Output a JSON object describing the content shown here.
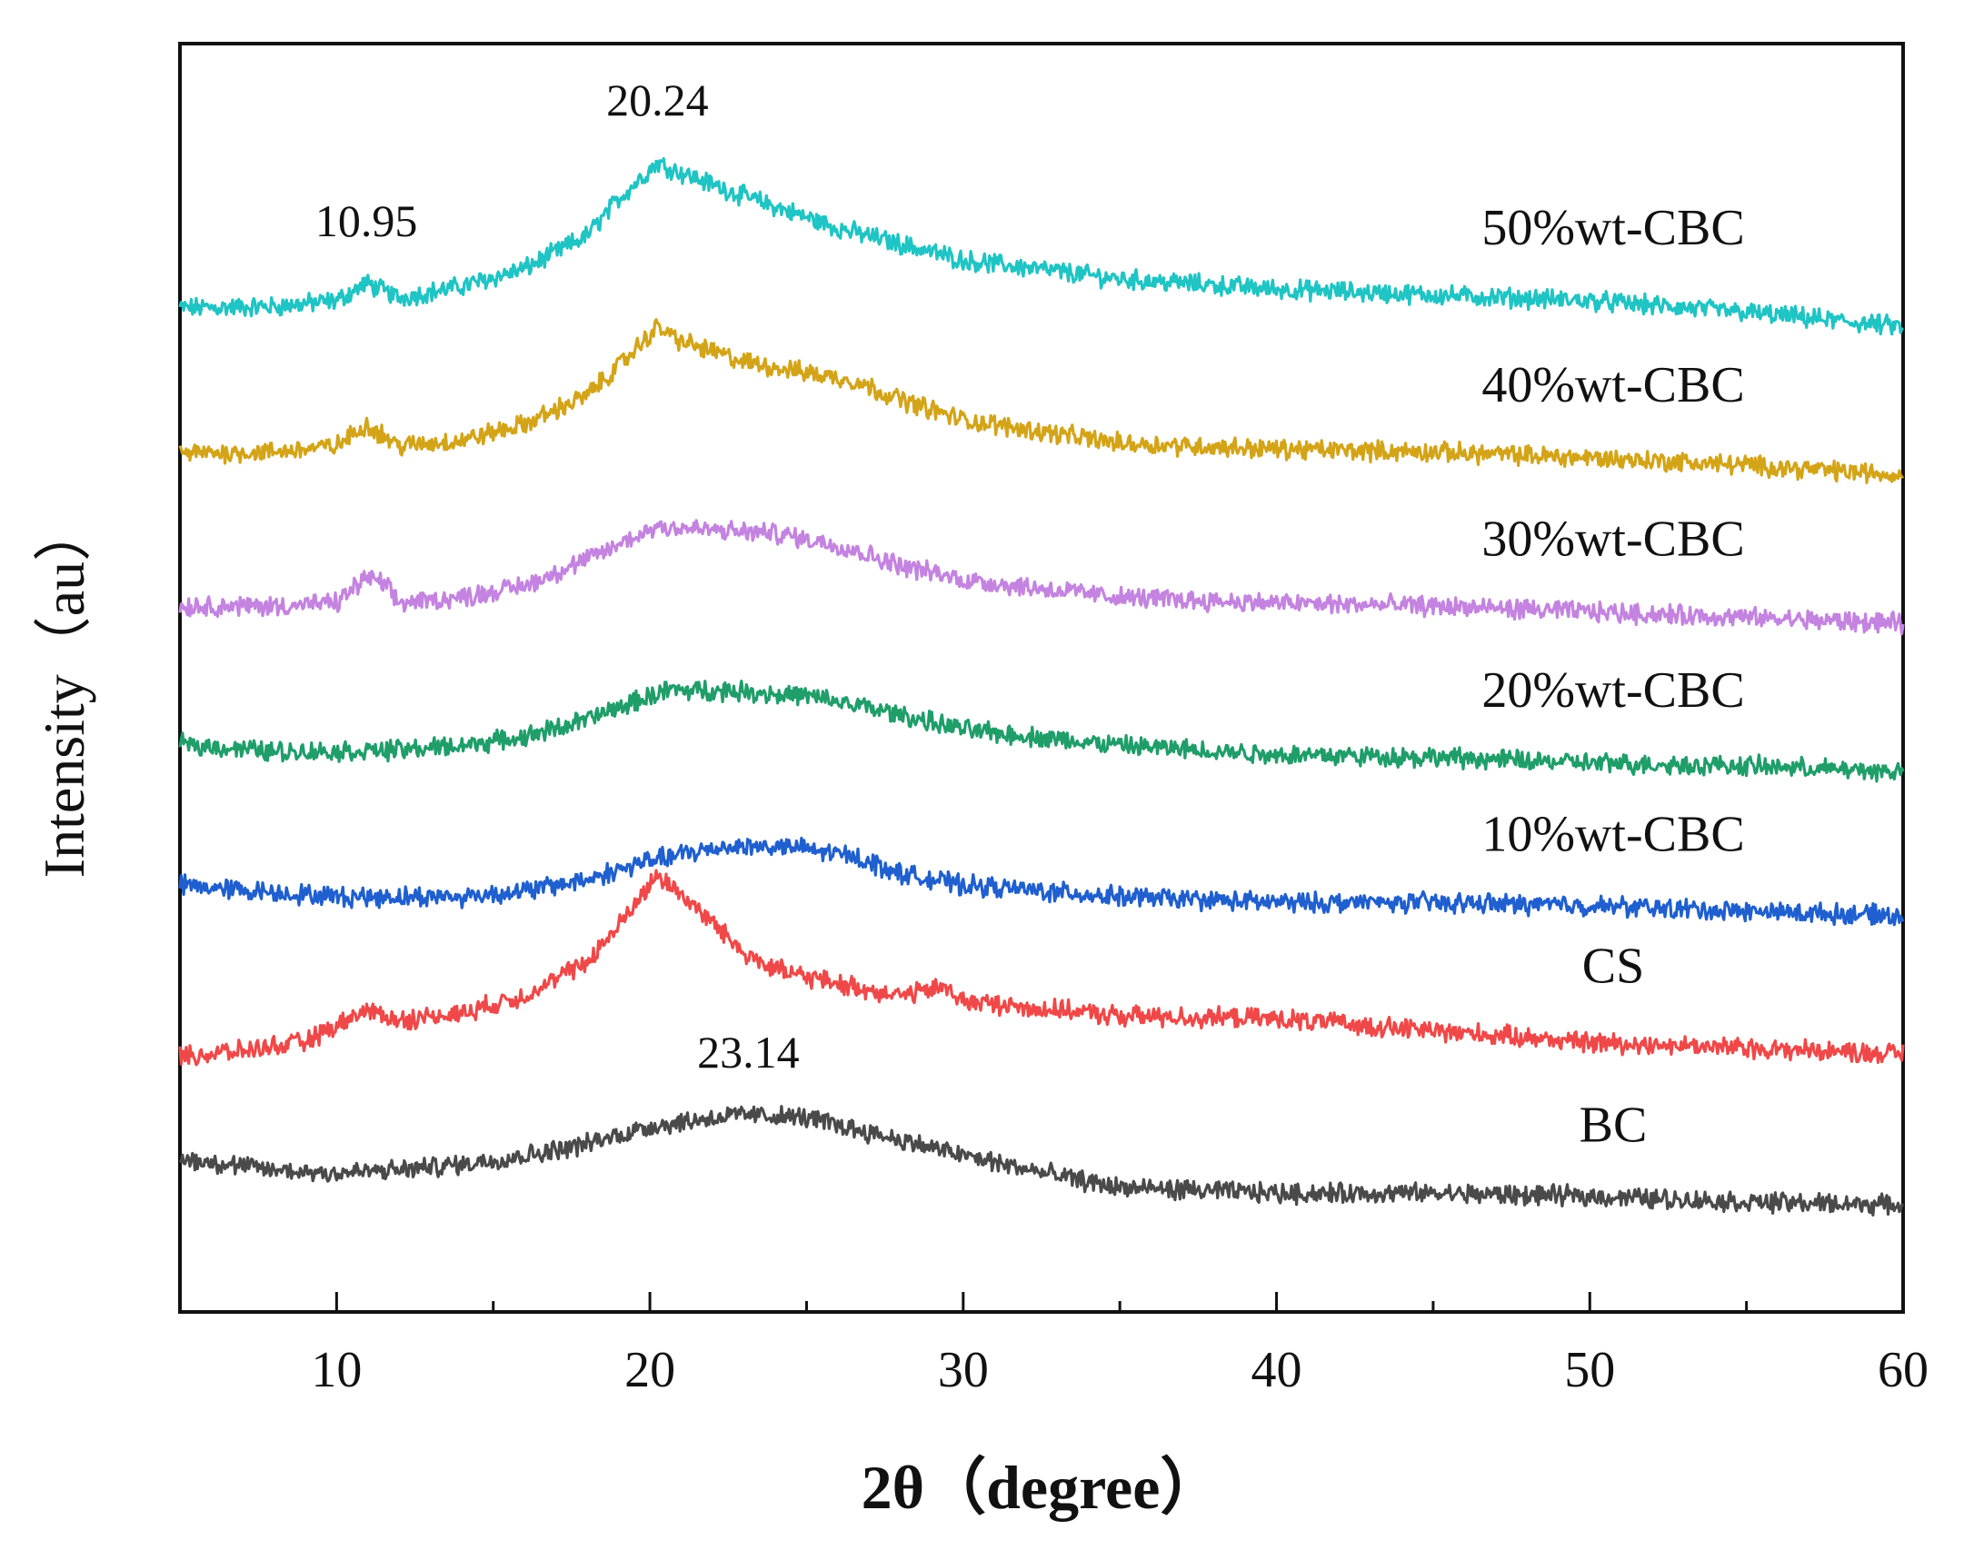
{
  "chart_data": {
    "type": "line",
    "title": "",
    "xlabel": "2θ（degree）",
    "ylabel": "Intensity（au）",
    "xlim": [
      5,
      60
    ],
    "x_ticks": [
      10,
      20,
      30,
      40,
      50,
      60
    ],
    "x_tick_labels": [
      "10",
      "20",
      "30",
      "40",
      "50",
      "60"
    ],
    "y_ticks_shown": false,
    "stacked_offset": true,
    "series": [
      {
        "name": "50%wt-CBC",
        "color": "#1FC4C4",
        "offset": 6.0,
        "x": [
          5,
          8,
          10,
          10.95,
          12,
          14,
          16,
          18,
          19,
          20.24,
          21,
          23,
          26,
          30,
          35,
          40,
          45,
          50,
          55,
          60
        ],
        "y": [
          0.35,
          0.36,
          0.4,
          0.52,
          0.42,
          0.5,
          0.62,
          0.85,
          1.1,
          1.35,
          1.28,
          1.12,
          0.9,
          0.68,
          0.55,
          0.48,
          0.44,
          0.4,
          0.32,
          0.22
        ]
      },
      {
        "name": "40%wt-CBC",
        "color": "#D4A418",
        "offset": 5.0,
        "x": [
          5,
          8,
          10,
          10.95,
          12,
          14,
          16,
          18,
          19,
          20.24,
          21,
          23,
          26.5,
          28,
          30,
          35,
          40,
          45,
          50,
          55,
          60
        ],
        "y": [
          0.35,
          0.36,
          0.4,
          0.55,
          0.4,
          0.44,
          0.55,
          0.75,
          0.95,
          1.22,
          1.12,
          0.98,
          0.85,
          0.72,
          0.58,
          0.42,
          0.38,
          0.36,
          0.32,
          0.27,
          0.2
        ]
      },
      {
        "name": "30%wt-CBC",
        "color": "#C483E0",
        "offset": 4.0,
        "x": [
          5,
          8,
          10,
          10.95,
          11.5,
          12,
          14,
          16,
          18,
          20.24,
          22,
          24,
          26,
          28,
          30,
          35,
          40,
          45,
          50,
          55,
          60
        ],
        "y": [
          0.3,
          0.3,
          0.32,
          0.5,
          0.45,
          0.32,
          0.36,
          0.44,
          0.62,
          0.85,
          0.82,
          0.8,
          0.72,
          0.58,
          0.48,
          0.36,
          0.32,
          0.3,
          0.26,
          0.22,
          0.18
        ]
      },
      {
        "name": "20%wt-CBC",
        "color": "#1F9E6A",
        "offset": 3.0,
        "x": [
          5,
          8,
          10,
          12,
          14,
          16,
          18,
          20.5,
          22.5,
          25,
          27,
          30,
          35,
          40,
          45,
          50,
          55,
          60
        ],
        "y": [
          0.35,
          0.3,
          0.3,
          0.31,
          0.34,
          0.4,
          0.52,
          0.72,
          0.72,
          0.68,
          0.6,
          0.45,
          0.34,
          0.28,
          0.26,
          0.22,
          0.2,
          0.16
        ]
      },
      {
        "name": "10%wt-CBC",
        "color": "#1F5FCF",
        "offset": 2.0,
        "x": [
          5,
          8,
          10,
          12,
          14,
          16,
          18,
          20,
          22.5,
          24.5,
          26.5,
          28,
          30,
          35,
          40,
          45,
          50,
          55,
          60
        ],
        "y": [
          0.38,
          0.33,
          0.3,
          0.3,
          0.3,
          0.34,
          0.42,
          0.55,
          0.65,
          0.64,
          0.58,
          0.46,
          0.38,
          0.3,
          0.26,
          0.26,
          0.24,
          0.2,
          0.17
        ]
      },
      {
        "name": "CS",
        "color": "#F04848",
        "offset": 1.0,
        "x": [
          5,
          7,
          9,
          10.95,
          12,
          14,
          16,
          18,
          19,
          20.24,
          21,
          22,
          23,
          24,
          26,
          28,
          29.5,
          30,
          32,
          35,
          40,
          45,
          50,
          55,
          60
        ],
        "y": [
          0.2,
          0.24,
          0.3,
          0.52,
          0.45,
          0.5,
          0.62,
          0.85,
          1.1,
          1.45,
          1.32,
          1.12,
          0.92,
          0.8,
          0.7,
          0.62,
          0.68,
          0.58,
          0.54,
          0.48,
          0.46,
          0.38,
          0.3,
          0.26,
          0.22
        ]
      },
      {
        "name": "BC",
        "color": "#4A4A4A",
        "offset": 0.0,
        "x": [
          5,
          8,
          10,
          12,
          14,
          16,
          18,
          20,
          22,
          23.14,
          25,
          27,
          30,
          33,
          35,
          40,
          45,
          50,
          55,
          60
        ],
        "y": [
          0.5,
          0.42,
          0.4,
          0.42,
          0.46,
          0.52,
          0.6,
          0.72,
          0.78,
          0.8,
          0.78,
          0.68,
          0.52,
          0.38,
          0.3,
          0.26,
          0.26,
          0.24,
          0.2,
          0.18
        ]
      }
    ],
    "annotations": [
      {
        "text": "20.24",
        "x": 20.24,
        "series": "50%wt-CBC"
      },
      {
        "text": "10.95",
        "x": 10.95,
        "series": "50%wt-CBC"
      },
      {
        "text": "23.14",
        "x": 23.14,
        "series": "BC"
      }
    ]
  }
}
